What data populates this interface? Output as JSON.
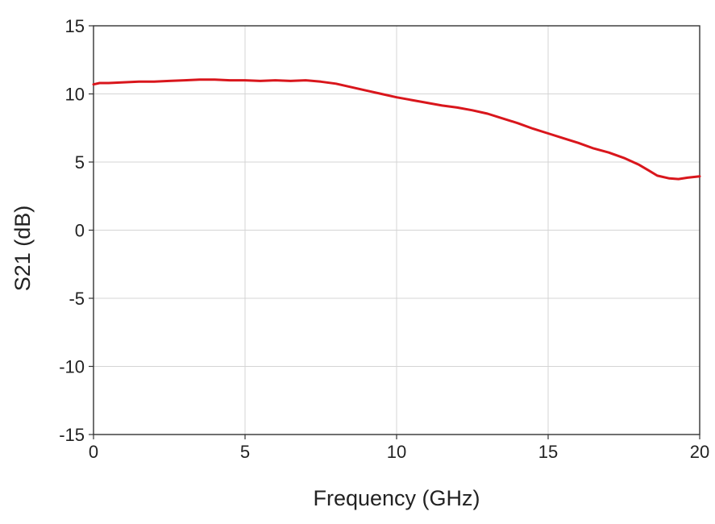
{
  "chart_data": {
    "type": "line",
    "title": "",
    "xlabel": "Frequency (GHz)",
    "ylabel": "S21 (dB)",
    "xlim": [
      0,
      20
    ],
    "ylim": [
      -15,
      15
    ],
    "x_ticks": [
      0,
      5,
      10,
      15,
      20
    ],
    "y_ticks": [
      15,
      10,
      5,
      0,
      -5,
      -10,
      -15
    ],
    "x_tick_labels": [
      "0",
      "5",
      "10",
      "15",
      "20"
    ],
    "y_tick_labels": [
      "15",
      "10",
      "5",
      "0",
      "-5",
      "-10",
      "-15"
    ],
    "grid": true,
    "legend": "none",
    "series": [
      {
        "color": "#d9161c",
        "x": [
          0,
          0.2,
          0.5,
          1,
          1.5,
          2,
          2.5,
          3,
          3.5,
          4,
          4.5,
          5,
          5.5,
          6,
          6.5,
          7,
          7.5,
          8,
          8.5,
          9,
          9.5,
          10,
          10.5,
          11,
          11.5,
          12,
          12.5,
          13,
          13.5,
          14,
          14.5,
          15,
          15.5,
          16,
          16.5,
          17,
          17.5,
          18,
          18.3,
          18.6,
          19,
          19.3,
          19.6,
          20
        ],
        "y": [
          10.7,
          10.8,
          10.8,
          10.85,
          10.9,
          10.9,
          10.95,
          11.0,
          11.05,
          11.05,
          11.0,
          11.0,
          10.95,
          11.0,
          10.95,
          11.0,
          10.9,
          10.75,
          10.5,
          10.25,
          10.0,
          9.75,
          9.55,
          9.35,
          9.15,
          9.0,
          8.8,
          8.55,
          8.2,
          7.85,
          7.45,
          7.1,
          6.75,
          6.4,
          6.0,
          5.7,
          5.3,
          4.8,
          4.4,
          4.0,
          3.8,
          3.75,
          3.85,
          3.95
        ]
      }
    ]
  }
}
